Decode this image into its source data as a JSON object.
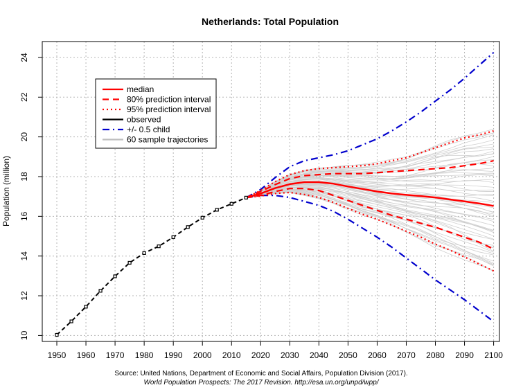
{
  "chart_data": {
    "type": "line",
    "title": "Netherlands: Total Population",
    "ylabel": "Population (million)",
    "xlabel": "",
    "xlim": [
      1945,
      2102
    ],
    "ylim": [
      9.7,
      24.8
    ],
    "x_ticks": [
      "1950",
      "1960",
      "1970",
      "1980",
      "1990",
      "2000",
      "2010",
      "2020",
      "2030",
      "2040",
      "2050",
      "2060",
      "2070",
      "2080",
      "2090",
      "2100"
    ],
    "y_ticks": [
      "10",
      "12",
      "14",
      "16",
      "18",
      "20",
      "22",
      "24"
    ],
    "grid": true,
    "legend_position": "top-left",
    "legend": [
      {
        "label": "median",
        "color": "#ff0000",
        "style": "solid"
      },
      {
        "label": "80% prediction interval",
        "color": "#ff0000",
        "style": "dashed"
      },
      {
        "label": "95% prediction interval",
        "color": "#ff0000",
        "style": "dotted"
      },
      {
        "label": "observed",
        "color": "#000000",
        "style": "solid"
      },
      {
        "label": "+/- 0.5 child",
        "color": "#0000cd",
        "style": "dashdot"
      },
      {
        "label": "60 sample trajectories",
        "color": "#bebebe",
        "style": "solid"
      }
    ],
    "series": [
      {
        "name": "observed",
        "color": "#000000",
        "x": [
          1950,
          1955,
          1960,
          1965,
          1970,
          1975,
          1980,
          1985,
          1990,
          1995,
          2000,
          2005,
          2010,
          2015
        ],
        "values": [
          10.03,
          10.71,
          11.45,
          12.25,
          12.98,
          13.66,
          14.15,
          14.49,
          14.95,
          15.46,
          15.93,
          16.33,
          16.63,
          16.94
        ]
      },
      {
        "name": "median",
        "color": "#ff0000",
        "x": [
          2015,
          2020,
          2025,
          2030,
          2035,
          2040,
          2045,
          2050,
          2055,
          2060,
          2065,
          2070,
          2075,
          2080,
          2085,
          2090,
          2095,
          2100
        ],
        "values": [
          16.94,
          17.15,
          17.42,
          17.62,
          17.72,
          17.72,
          17.64,
          17.5,
          17.38,
          17.25,
          17.15,
          17.08,
          17.02,
          16.95,
          16.85,
          16.75,
          16.65,
          16.52
        ]
      },
      {
        "name": "80% upper",
        "color": "#ff0000",
        "x": [
          2015,
          2020,
          2025,
          2030,
          2035,
          2040,
          2045,
          2050,
          2055,
          2060,
          2065,
          2070,
          2075,
          2080,
          2085,
          2090,
          2095,
          2100
        ],
        "values": [
          16.94,
          17.25,
          17.6,
          17.9,
          18.05,
          18.1,
          18.15,
          18.15,
          18.15,
          18.2,
          18.25,
          18.3,
          18.35,
          18.4,
          18.45,
          18.55,
          18.65,
          18.8
        ]
      },
      {
        "name": "80% lower",
        "color": "#ff0000",
        "x": [
          2015,
          2020,
          2025,
          2030,
          2035,
          2040,
          2045,
          2050,
          2055,
          2060,
          2065,
          2070,
          2075,
          2080,
          2085,
          2090,
          2095,
          2100
        ],
        "values": [
          16.94,
          17.05,
          17.25,
          17.4,
          17.4,
          17.3,
          17.05,
          16.8,
          16.55,
          16.3,
          16.05,
          15.85,
          15.65,
          15.45,
          15.2,
          14.95,
          14.7,
          14.35
        ]
      },
      {
        "name": "95% upper",
        "color": "#ff0000",
        "x": [
          2015,
          2020,
          2025,
          2030,
          2035,
          2040,
          2045,
          2050,
          2055,
          2060,
          2065,
          2070,
          2075,
          2080,
          2085,
          2090,
          2095,
          2100
        ],
        "values": [
          16.94,
          17.3,
          17.75,
          18.1,
          18.3,
          18.4,
          18.45,
          18.5,
          18.55,
          18.65,
          18.8,
          18.95,
          19.2,
          19.45,
          19.7,
          19.95,
          20.1,
          20.3
        ]
      },
      {
        "name": "95% lower",
        "color": "#ff0000",
        "x": [
          2015,
          2020,
          2025,
          2030,
          2035,
          2040,
          2045,
          2050,
          2055,
          2060,
          2065,
          2070,
          2075,
          2080,
          2085,
          2090,
          2095,
          2100
        ],
        "values": [
          16.94,
          17.02,
          17.15,
          17.2,
          17.1,
          16.95,
          16.7,
          16.4,
          16.1,
          15.85,
          15.55,
          15.25,
          14.95,
          14.6,
          14.3,
          13.95,
          13.6,
          13.25
        ]
      },
      {
        "name": "+0.5 child",
        "color": "#0000cd",
        "x": [
          2015,
          2020,
          2025,
          2030,
          2035,
          2040,
          2045,
          2050,
          2055,
          2060,
          2065,
          2070,
          2075,
          2080,
          2085,
          2090,
          2095,
          2100
        ],
        "values": [
          16.94,
          17.35,
          17.95,
          18.5,
          18.8,
          18.95,
          19.1,
          19.3,
          19.6,
          19.9,
          20.3,
          20.75,
          21.25,
          21.8,
          22.35,
          22.95,
          23.6,
          24.25
        ]
      },
      {
        "name": "-0.5 child",
        "color": "#0000cd",
        "x": [
          2015,
          2020,
          2025,
          2030,
          2035,
          2040,
          2045,
          2050,
          2055,
          2060,
          2065,
          2070,
          2075,
          2080,
          2085,
          2090,
          2095,
          2100
        ],
        "values": [
          16.94,
          17.05,
          17.05,
          16.95,
          16.75,
          16.55,
          16.25,
          15.85,
          15.4,
          14.95,
          14.45,
          13.9,
          13.35,
          12.8,
          12.3,
          11.8,
          11.25,
          10.7
        ]
      }
    ]
  },
  "source_line1": "Source: United Nations, Department of Economic and Social Affairs, Population Division (2017).",
  "source_line2": "World Population Prospects: The 2017 Revision. http://esa.un.org/unpd/wpp/"
}
